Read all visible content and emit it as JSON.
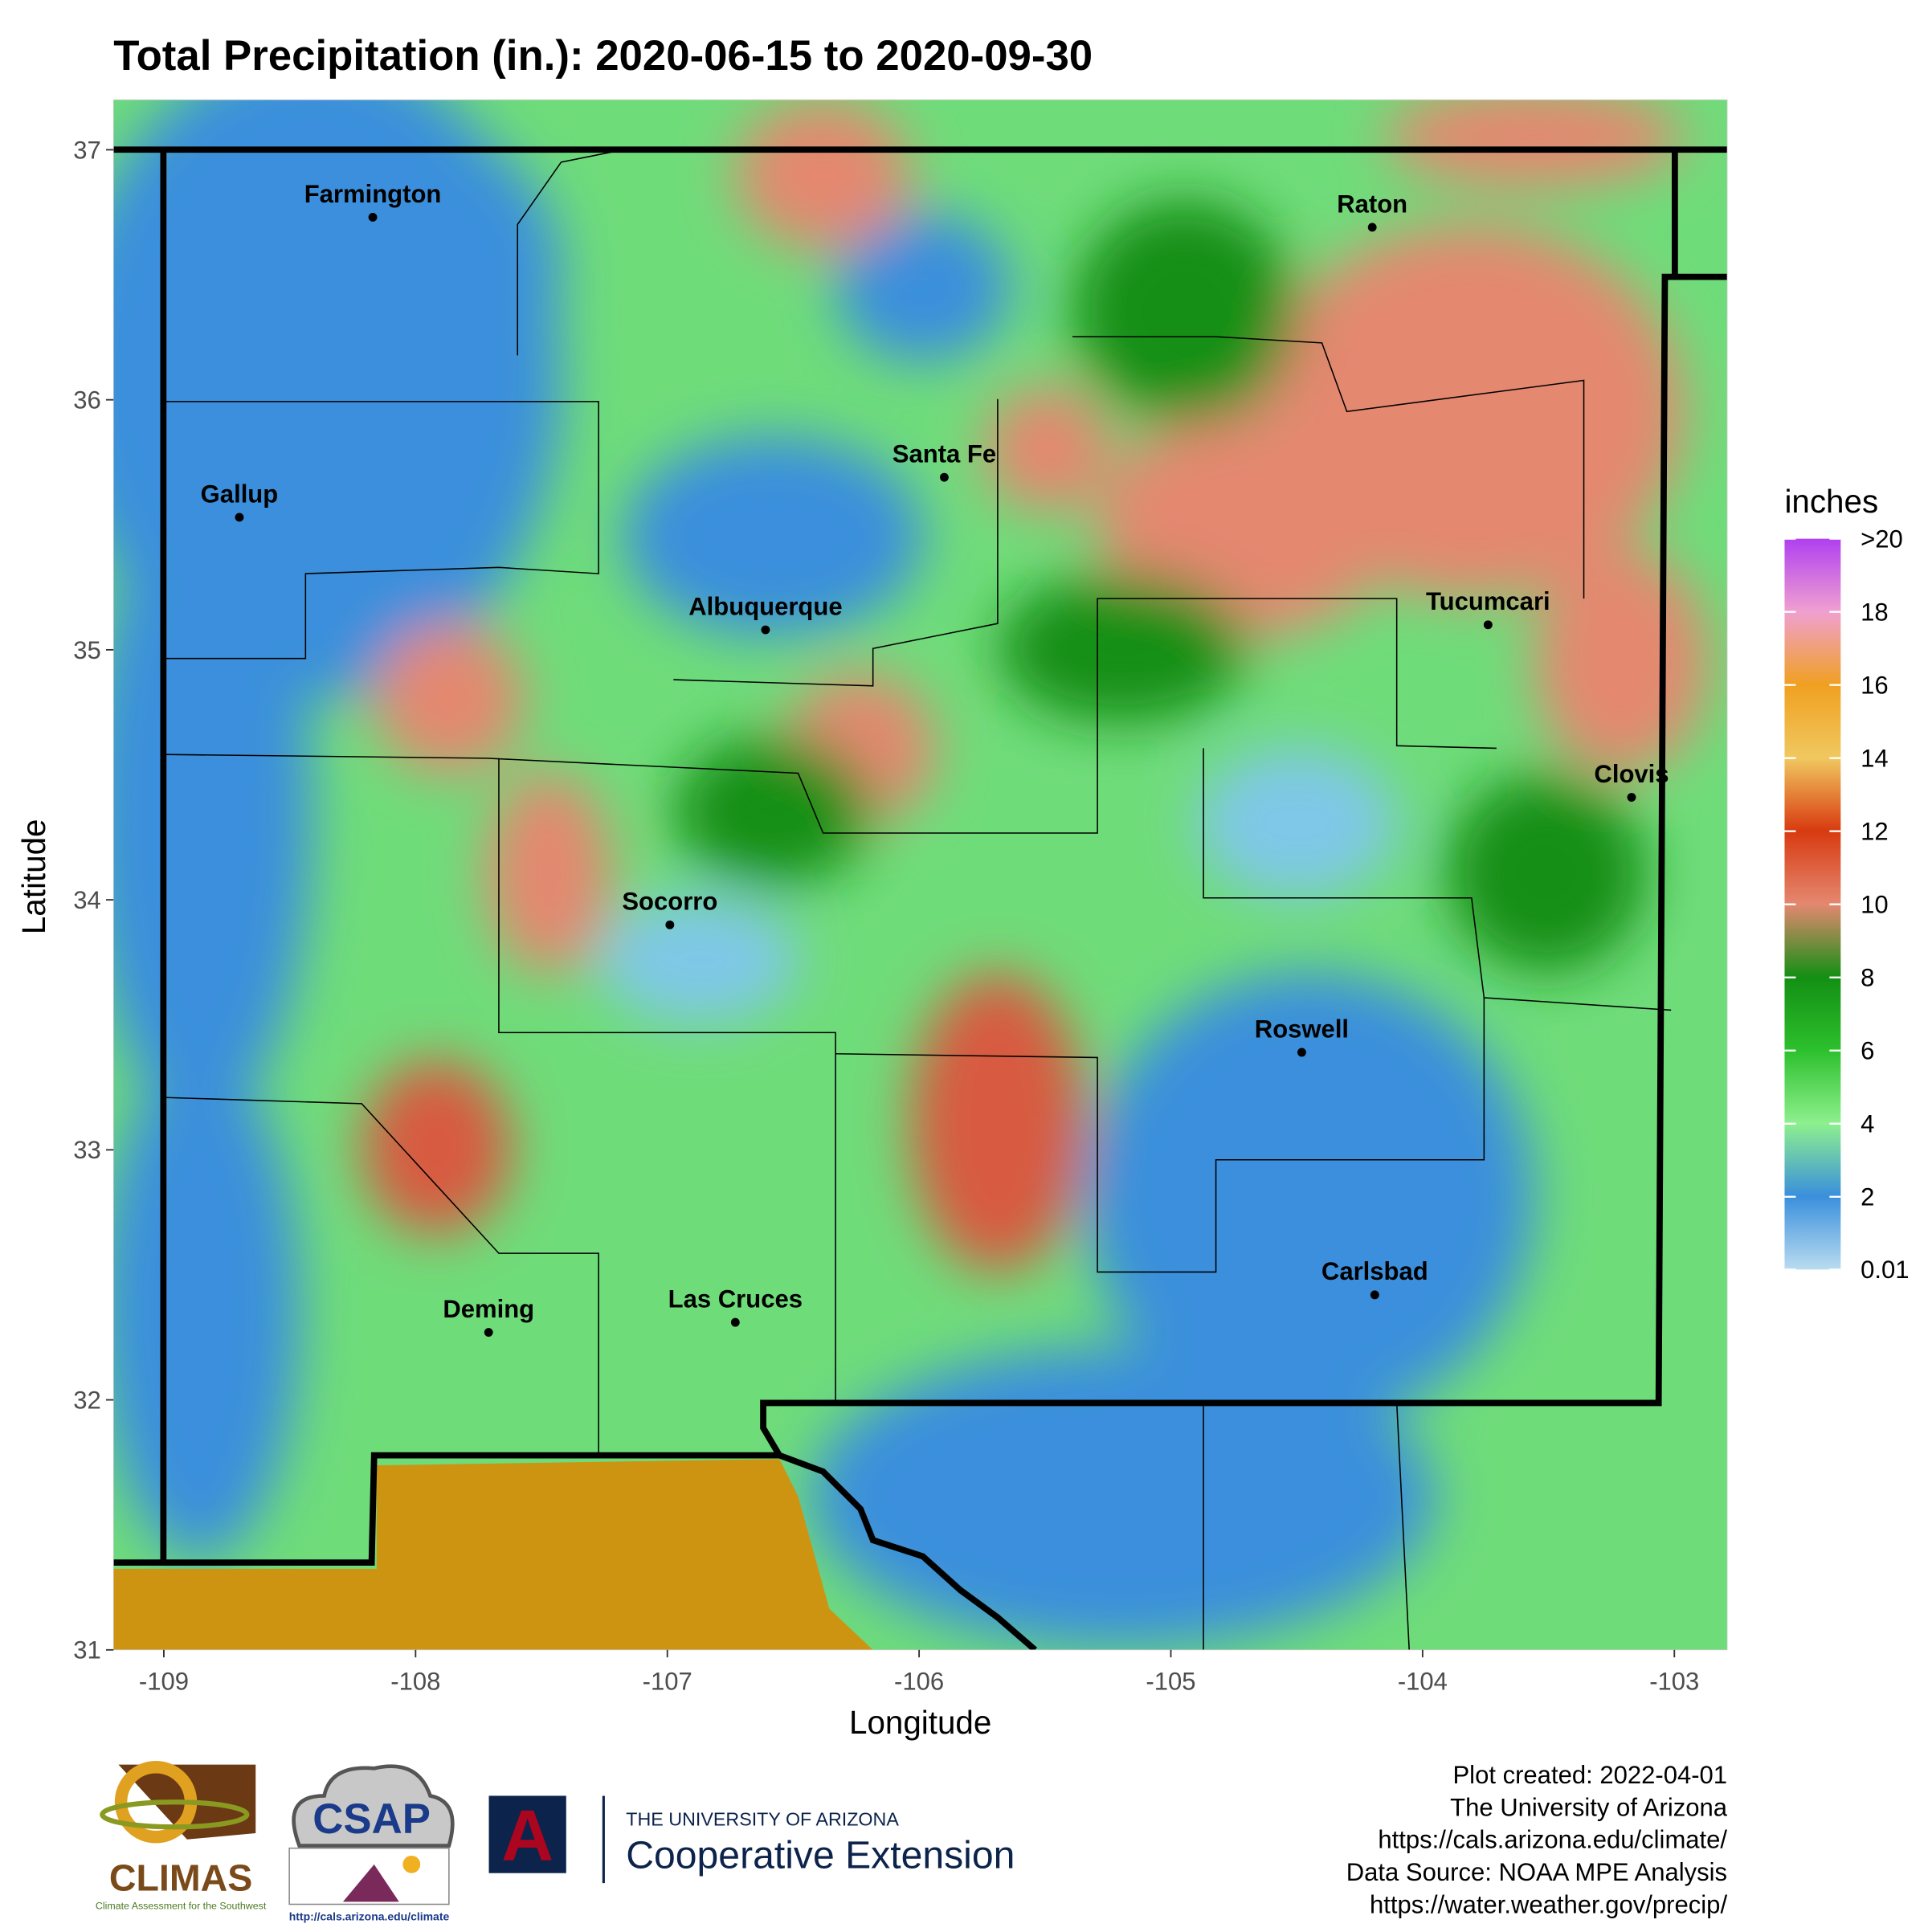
{
  "chart_data": {
    "type": "map",
    "title": "Total Precipitation (in.): 2020-06-15 to 2020-09-30",
    "x_label": "Longitude",
    "y_label": "Latitude",
    "xlim": [
      -109.2,
      -102.79
    ],
    "ylim": [
      31,
      37.2
    ],
    "xticks": [
      -109,
      -108,
      -107,
      -106,
      -105,
      -104,
      -103
    ],
    "yticks": [
      31,
      32,
      33,
      34,
      35,
      36,
      37
    ],
    "points": [
      {
        "name": "Farmington",
        "x": -108.17,
        "y": 36.73
      },
      {
        "name": "Raton",
        "x": -104.2,
        "y": 36.69
      },
      {
        "name": "Santa Fe",
        "x": -105.9,
        "y": 35.69
      },
      {
        "name": "Gallup",
        "x": -108.7,
        "y": 35.53
      },
      {
        "name": "Albuquerque",
        "x": -106.61,
        "y": 35.08
      },
      {
        "name": "Tucumcari",
        "x": -103.74,
        "y": 35.1
      },
      {
        "name": "Clovis",
        "x": -103.17,
        "y": 34.41
      },
      {
        "name": "Socorro",
        "x": -106.99,
        "y": 33.9
      },
      {
        "name": "Roswell",
        "x": -104.48,
        "y": 33.39
      },
      {
        "name": "Carlsbad",
        "x": -104.19,
        "y": 32.42
      },
      {
        "name": "Deming",
        "x": -107.71,
        "y": 32.27
      },
      {
        "name": "Las Cruces",
        "x": -106.73,
        "y": 32.31
      }
    ],
    "legend": {
      "title": "inches",
      "lim": [
        0.01,
        20
      ],
      "ticks": [
        {
          "value": 20,
          "label": ">20"
        },
        18,
        16,
        14,
        12,
        10,
        8,
        6,
        4,
        2,
        0.01
      ],
      "colors": [
        "#b9dcf0",
        "#3a8fdc",
        "#8ef08e",
        "#2dc02d",
        "#138f13",
        "#e48870",
        "#d83a10",
        "#f0c860",
        "#f0a020",
        "#f0a0d0",
        "#b040f0"
      ]
    }
  },
  "credits": [
    "Plot created: 2022-04-01",
    "The University of Arizona",
    "https://cals.arizona.edu/climate/",
    "Data Source: NOAA MPE Analysis",
    "https://water.weather.gov/precip/"
  ],
  "logos": {
    "climas": "CLIMAS",
    "climas_sub": "Climate Assessment for the Southwest",
    "csap": "CSAP",
    "csap_url": "http://cals.arizona.edu/climate",
    "ua_letter": "A",
    "ua_line1": "THE UNIVERSITY OF ARIZONA",
    "ua_line2": "Cooperative Extension"
  }
}
